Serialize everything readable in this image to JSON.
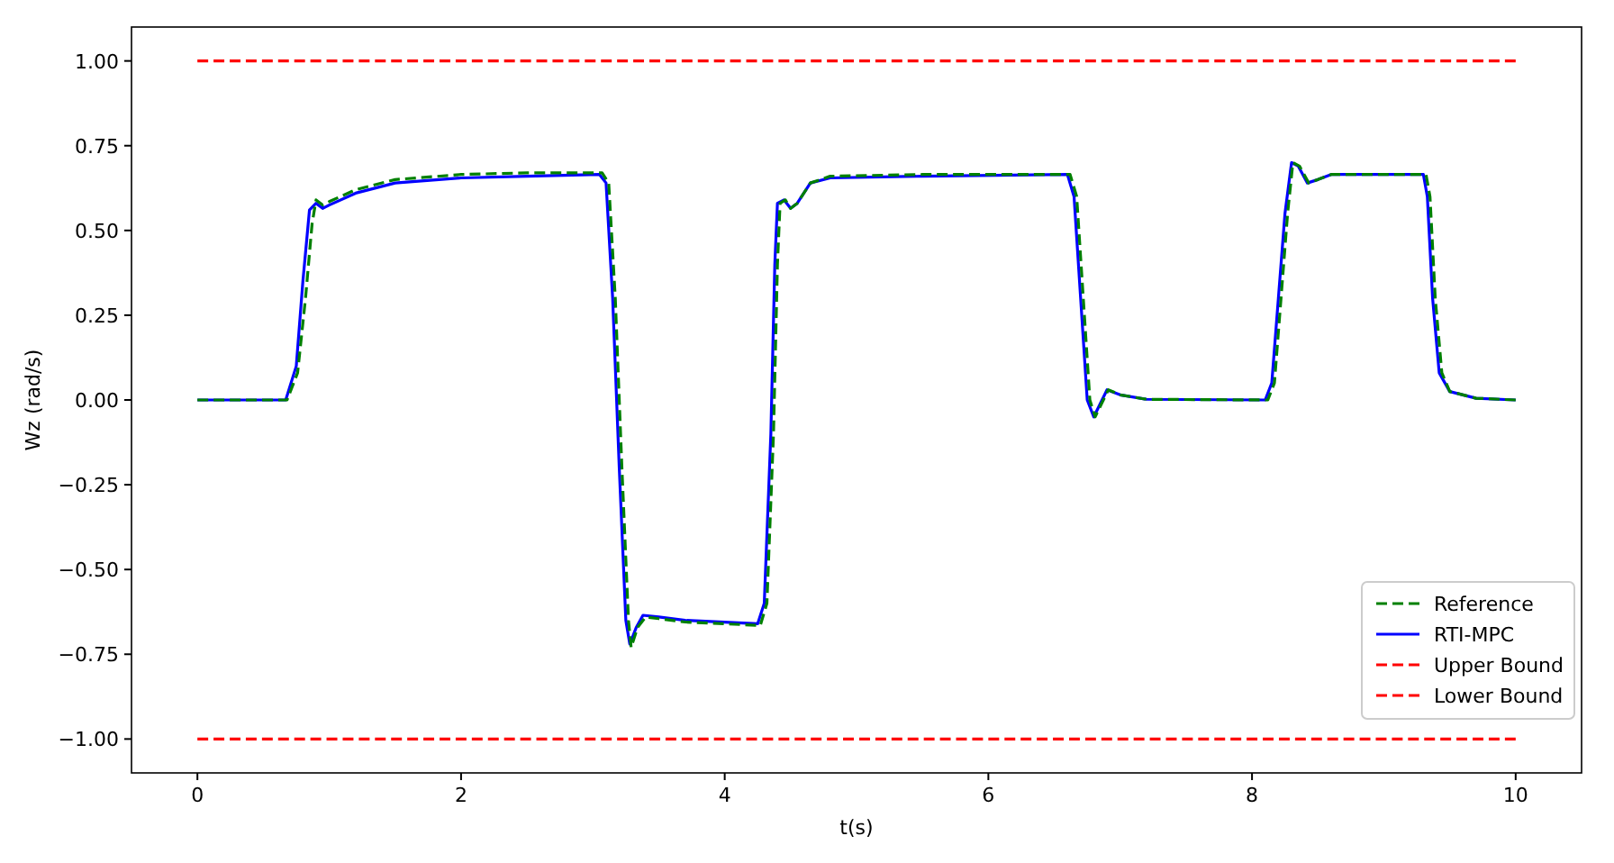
{
  "chart_data": {
    "type": "line",
    "xlabel": "t(s)",
    "ylabel": "Wz (rad/s)",
    "xlim": [
      -0.5,
      10.5
    ],
    "ylim": [
      -1.1,
      1.1
    ],
    "xticks": [
      0,
      2,
      4,
      6,
      8,
      10
    ],
    "yticks": [
      {
        "value": -1,
        "label": "−1.00"
      },
      {
        "value": -0.75,
        "label": "−0.75"
      },
      {
        "value": -0.5,
        "label": "−0.50"
      },
      {
        "value": -0.25,
        "label": "−0.25"
      },
      {
        "value": 0,
        "label": "0.00"
      },
      {
        "value": 0.25,
        "label": "0.25"
      },
      {
        "value": 0.5,
        "label": "0.50"
      },
      {
        "value": 0.75,
        "label": "0.75"
      },
      {
        "value": 1,
        "label": "1.00"
      }
    ],
    "grid": false,
    "legend": "bottom right",
    "marker": "none",
    "series": [
      {
        "name": "Reference",
        "color": "#008000",
        "line_style": "dashed",
        "x": [
          0,
          0.68,
          0.76,
          0.82,
          0.87,
          0.9,
          0.95,
          1.0,
          1.2,
          1.5,
          2.0,
          2.5,
          3.07,
          3.12,
          3.17,
          3.22,
          3.27,
          3.29,
          3.34,
          3.4,
          3.5,
          3.7,
          4.27,
          4.32,
          4.37,
          4.4,
          4.42,
          4.46,
          4.5,
          4.55,
          4.65,
          4.8,
          5.5,
          6.62,
          6.67,
          6.72,
          6.77,
          6.81,
          6.86,
          6.91,
          7.0,
          7.2,
          8.12,
          8.17,
          8.22,
          8.27,
          8.31,
          8.36,
          8.43,
          8.5,
          8.6,
          9.32,
          9.35,
          9.39,
          9.44,
          9.5,
          9.7,
          10
        ],
        "values": [
          0,
          0,
          0.08,
          0.3,
          0.52,
          0.59,
          0.575,
          0.585,
          0.62,
          0.65,
          0.665,
          0.67,
          0.67,
          0.64,
          0.3,
          -0.2,
          -0.65,
          -0.73,
          -0.67,
          -0.64,
          -0.645,
          -0.655,
          -0.665,
          -0.6,
          -0.1,
          0.4,
          0.58,
          0.59,
          0.565,
          0.58,
          0.64,
          0.66,
          0.665,
          0.665,
          0.6,
          0.3,
          0.0,
          -0.05,
          -0.01,
          0.03,
          0.015,
          0.002,
          0,
          0.05,
          0.3,
          0.55,
          0.7,
          0.69,
          0.64,
          0.65,
          0.665,
          0.665,
          0.6,
          0.3,
          0.08,
          0.025,
          0.005,
          0
        ]
      },
      {
        "name": "RTI-MPC",
        "color": "#0000ff",
        "line_style": "solid",
        "x": [
          0,
          0.67,
          0.75,
          0.8,
          0.85,
          0.9,
          0.95,
          1.0,
          1.2,
          1.5,
          2.0,
          2.5,
          3.05,
          3.1,
          3.15,
          3.2,
          3.25,
          3.28,
          3.33,
          3.38,
          3.5,
          3.7,
          4.25,
          4.3,
          4.35,
          4.38,
          4.4,
          4.45,
          4.5,
          4.55,
          4.65,
          4.8,
          5.5,
          6.6,
          6.65,
          6.7,
          6.75,
          6.8,
          6.85,
          6.9,
          7.0,
          7.2,
          8.1,
          8.15,
          8.2,
          8.25,
          8.3,
          8.35,
          8.42,
          8.5,
          8.6,
          9.3,
          9.33,
          9.37,
          9.42,
          9.5,
          9.7,
          10
        ],
        "values": [
          0,
          0,
          0.1,
          0.35,
          0.56,
          0.58,
          0.565,
          0.575,
          0.61,
          0.64,
          0.655,
          0.66,
          0.665,
          0.64,
          0.3,
          -0.2,
          -0.65,
          -0.72,
          -0.67,
          -0.635,
          -0.64,
          -0.65,
          -0.66,
          -0.6,
          -0.1,
          0.4,
          0.58,
          0.59,
          0.565,
          0.58,
          0.64,
          0.655,
          0.66,
          0.665,
          0.6,
          0.3,
          0.0,
          -0.05,
          -0.01,
          0.03,
          0.015,
          0.002,
          0,
          0.05,
          0.3,
          0.55,
          0.7,
          0.69,
          0.64,
          0.65,
          0.665,
          0.665,
          0.6,
          0.3,
          0.08,
          0.025,
          0.005,
          0
        ]
      },
      {
        "name": "Upper Bound",
        "color": "#ff0000",
        "line_style": "dashed",
        "x": [
          0,
          10
        ],
        "values": [
          1,
          1
        ]
      },
      {
        "name": "Lower Bound",
        "color": "#ff0000",
        "line_style": "dashed",
        "x": [
          0,
          10
        ],
        "values": [
          -1,
          -1
        ]
      }
    ]
  }
}
